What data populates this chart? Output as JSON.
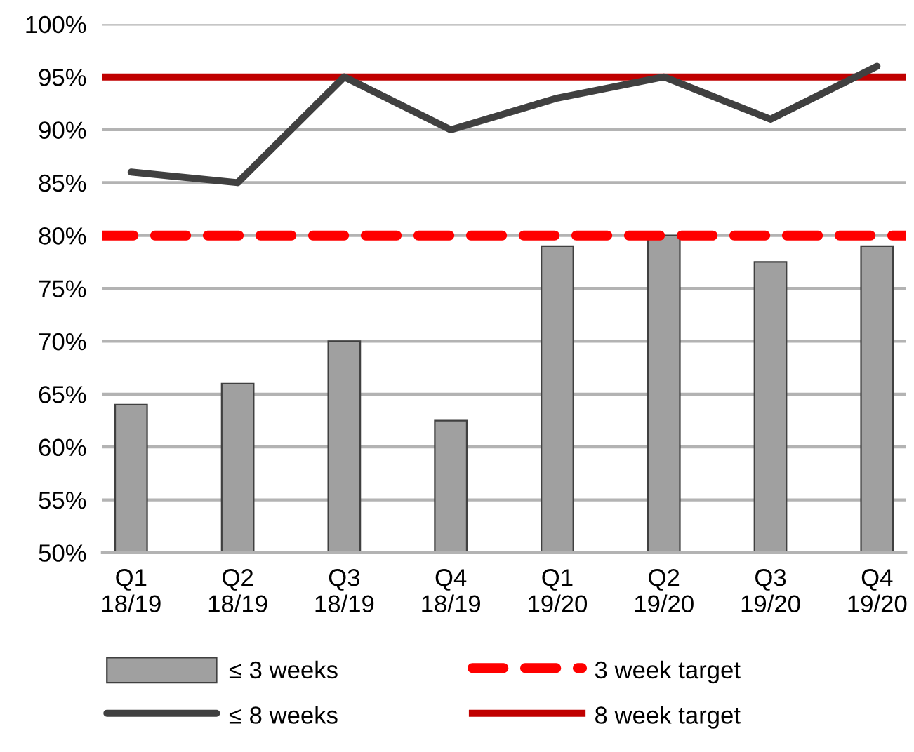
{
  "chart_data": {
    "type": "bar",
    "categories": [
      "Q1\n18/19",
      "Q2\n18/19",
      "Q3\n18/19",
      "Q4\n18/19",
      "Q1\n19/20",
      "Q2\n19/20",
      "Q3\n19/20",
      "Q4\n19/20"
    ],
    "series": [
      {
        "name": "≤ 3 weeks",
        "color": "#a0a0a0",
        "values": [
          64,
          66,
          70,
          62.5,
          79,
          80,
          77.5,
          79
        ]
      },
      {
        "name": "≤ 8 weeks",
        "type": "line",
        "color": "#404040",
        "values": [
          86,
          85,
          95,
          90,
          93,
          95,
          91,
          96
        ]
      }
    ],
    "ref_lines": [
      {
        "axis": "y",
        "value": 80,
        "label": "3 week target",
        "color": "#ff0000",
        "line_style": "dashed"
      },
      {
        "axis": "y",
        "value": 95,
        "label": "8 week target",
        "color": "#c00000",
        "line_style": "solid"
      }
    ],
    "ylim": [
      50,
      100
    ],
    "yticks": [
      {
        "value": 50,
        "label": "50%"
      },
      {
        "value": 55,
        "label": "55%"
      },
      {
        "value": 60,
        "label": "60%"
      },
      {
        "value": 65,
        "label": "65%"
      },
      {
        "value": 70,
        "label": "70%"
      },
      {
        "value": 75,
        "label": "75%"
      },
      {
        "value": 80,
        "label": "80%"
      },
      {
        "value": 85,
        "label": "85%"
      },
      {
        "value": 90,
        "label": "90%"
      },
      {
        "value": 95,
        "label": "95%"
      },
      {
        "value": 100,
        "label": "100%"
      }
    ],
    "grid": "y",
    "legend": "bottom",
    "marker": "none",
    "line_style": "solid"
  }
}
